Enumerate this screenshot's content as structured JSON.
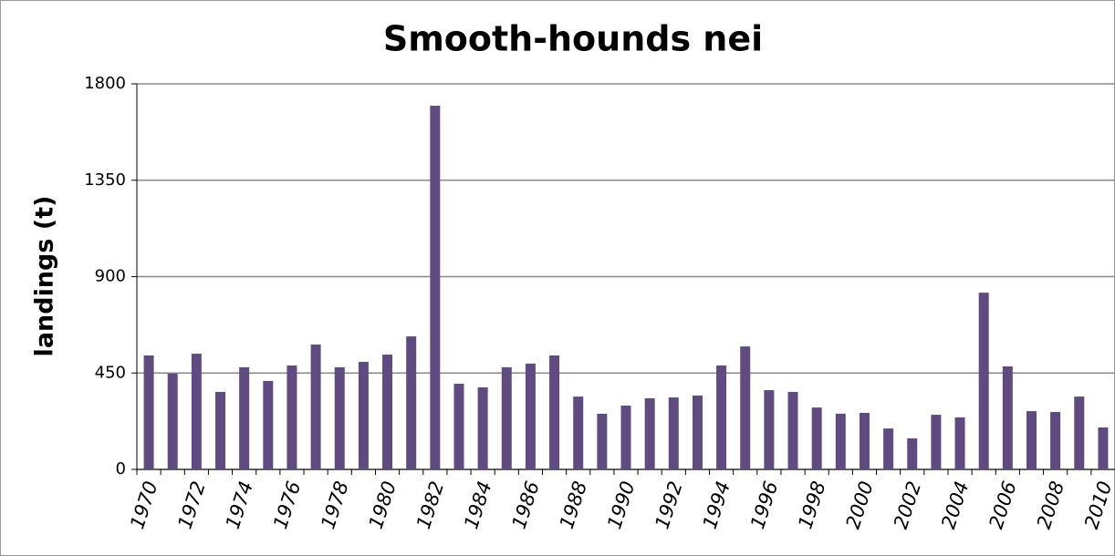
{
  "chart_data": {
    "type": "bar",
    "title": "Smooth-hounds nei",
    "y_label": "landings (t)",
    "categories": [
      "1970",
      null,
      "1972",
      null,
      "1974",
      null,
      "1976",
      null,
      "1978",
      null,
      "1980",
      null,
      "1982",
      null,
      "1984",
      null,
      "1986",
      null,
      "1988",
      null,
      "1990",
      null,
      "1992",
      null,
      "1994",
      null,
      "1996",
      null,
      "1998",
      null,
      "2000",
      null,
      "2002",
      null,
      "2004",
      null,
      "2006",
      null,
      "2008",
      null,
      "2010"
    ],
    "values": [
      532,
      447,
      540,
      362,
      477,
      413,
      485,
      583,
      477,
      502,
      536,
      621,
      1698,
      400,
      383,
      477,
      494,
      532,
      340,
      260,
      298,
      332,
      336,
      345,
      485,
      574,
      370,
      362,
      289,
      260,
      264,
      191,
      145,
      255,
      243,
      825,
      481,
      272,
      268,
      340,
      196
    ],
    "color": "#5f4b7f",
    "ylim": [
      0,
      1800
    ],
    "yticks": [
      0,
      450,
      900,
      1350,
      1800
    ],
    "grid": true
  }
}
